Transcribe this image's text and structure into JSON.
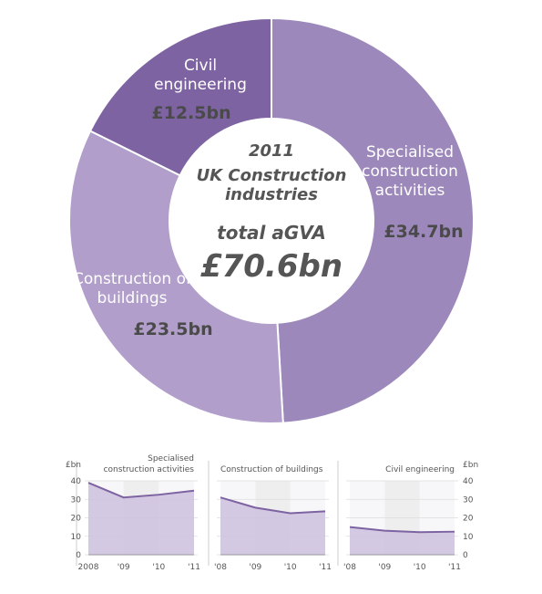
{
  "chart_data": [
    {
      "type": "pie",
      "title": "2011",
      "subtitle": "UK Construction industries",
      "center_label": "total aGVA",
      "center_value": "£70.6bn",
      "categories": [
        "Specialised construction activities",
        "Construction of buildings",
        "Civil engineering"
      ],
      "values": [
        34.7,
        23.5,
        12.5
      ],
      "value_labels": [
        "£34.7bn",
        "£23.5bn",
        "£12.5bn"
      ],
      "colors": [
        "#9c88ba",
        "#b19ecb",
        "#7d63a2"
      ]
    },
    {
      "type": "area",
      "title": "Specialised construction activities",
      "y_label": "£bn",
      "categories": [
        "2008",
        "'09",
        "'10",
        "'11"
      ],
      "values": [
        39,
        31,
        32.5,
        34.7
      ],
      "ylim": [
        0,
        40
      ],
      "yticks": [
        0,
        10,
        20,
        30,
        40
      ],
      "y_axis": "left",
      "color": "#7d63a2"
    },
    {
      "type": "area",
      "title": "Construction of buildings",
      "categories": [
        "'08",
        "'09",
        "'10",
        "'11"
      ],
      "values": [
        31,
        25.5,
        22.5,
        23.5
      ],
      "ylim": [
        0,
        40
      ],
      "yticks": [
        0,
        10,
        20,
        30,
        40
      ],
      "y_axis": "none",
      "color": "#7d63a2"
    },
    {
      "type": "area",
      "title": "Civil engineering",
      "y_label": "£bn",
      "categories": [
        "'08",
        "'09",
        "'10",
        "'11"
      ],
      "values": [
        15,
        13,
        12.2,
        12.5
      ],
      "ylim": [
        0,
        40
      ],
      "yticks": [
        0,
        10,
        20,
        30,
        40
      ],
      "y_axis": "right",
      "color": "#7d63a2"
    }
  ]
}
